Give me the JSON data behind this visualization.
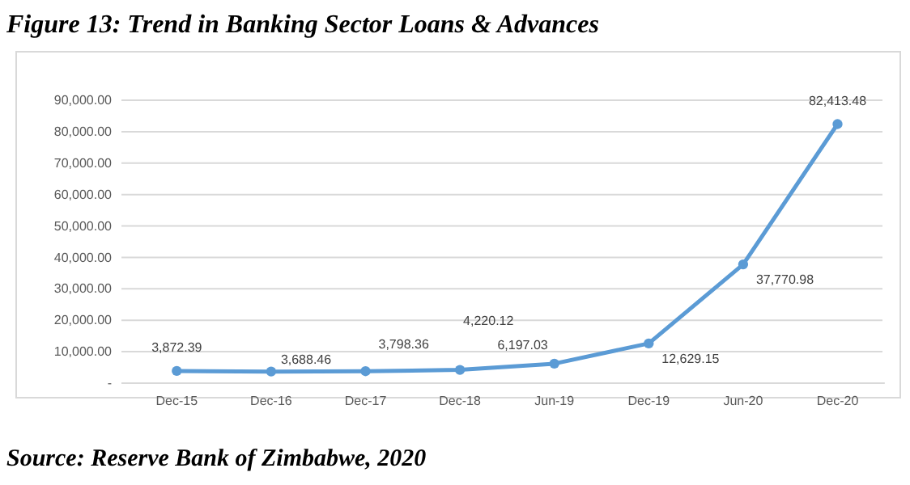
{
  "chart_data": {
    "type": "line",
    "title": "Figure 13: Trend in Banking Sector Loans & Advances",
    "categories": [
      "Dec-15",
      "Dec-16",
      "Dec-17",
      "Dec-18",
      "Jun-19",
      "Dec-19",
      "Jun-20",
      "Dec-20"
    ],
    "series": [
      {
        "color": "#5b9bd5",
        "values": [
          3872.39,
          3688.46,
          3798.36,
          4220.12,
          6197.03,
          12629.15,
          37770.98,
          82413.48
        ],
        "value_labels": [
          "3,872.39",
          "3,688.46",
          "3,798.36",
          "4,220.12",
          "6,197.03",
          "12,629.15",
          "37,770.98",
          "82,413.48"
        ]
      }
    ],
    "ylim": [
      0,
      90000
    ],
    "yticks": [
      {
        "value": 0,
        "label": "-"
      },
      {
        "value": 10000,
        "label": "10,000.00"
      },
      {
        "value": 20000,
        "label": "20,000.00"
      },
      {
        "value": 30000,
        "label": "30,000.00"
      },
      {
        "value": 40000,
        "label": "40,000.00"
      },
      {
        "value": 50000,
        "label": "50,000.00"
      },
      {
        "value": 60000,
        "label": "60,000.00"
      },
      {
        "value": 70000,
        "label": "70,000.00"
      },
      {
        "value": 80000,
        "label": "80,000.00"
      },
      {
        "value": 90000,
        "label": "90,000.00"
      }
    ],
    "grid": "y",
    "marker": "circle",
    "line_style": "solid",
    "annotations": [
      "Source: Reserve Bank of Zimbabwe, 2020"
    ]
  }
}
